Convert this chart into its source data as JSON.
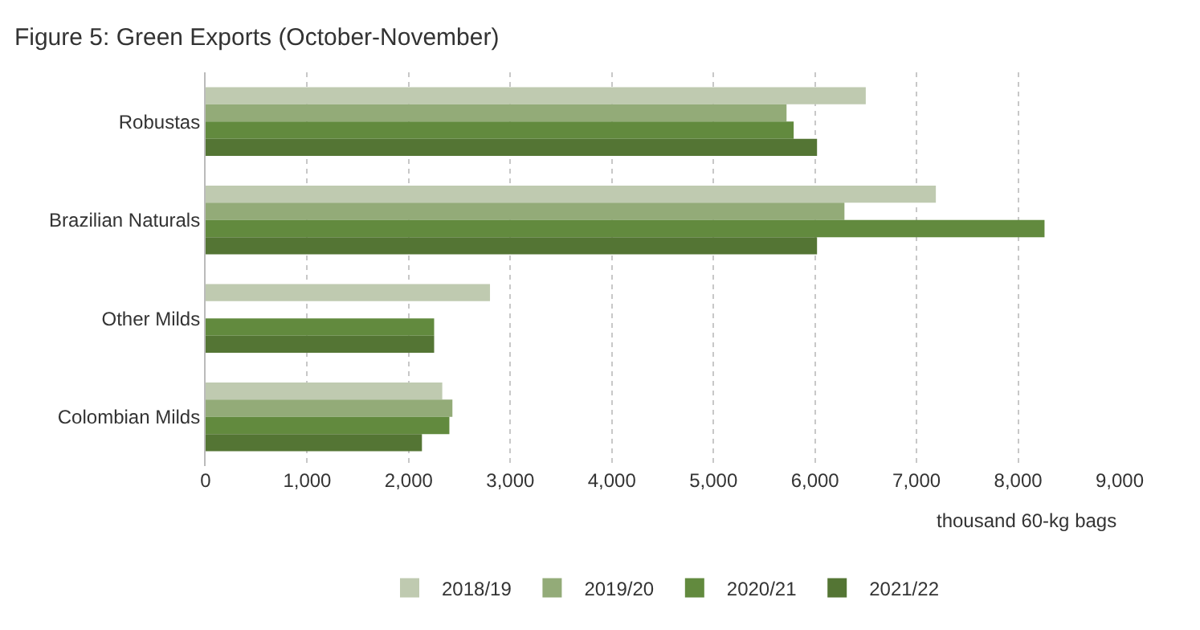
{
  "chart_data": {
    "type": "bar",
    "orientation": "horizontal",
    "title": "Figure 5: Green Exports (October-November)",
    "xlabel": "thousand 60-kg bags",
    "categories": [
      "Robustas",
      "Brazilian Naturals",
      "Other Milds",
      "Colombian Milds"
    ],
    "series": [
      {
        "name": "2018/19",
        "color": "#bfcab0",
        "values": [
          6500,
          7190,
          2800,
          2330
        ]
      },
      {
        "name": "2019/20",
        "color": "#93ab78",
        "values": [
          5720,
          6290,
          null,
          2430
        ]
      },
      {
        "name": "2020/21",
        "color": "#628a3e",
        "values": [
          5790,
          8260,
          2250,
          2400
        ]
      },
      {
        "name": "2021/22",
        "color": "#547534",
        "values": [
          6020,
          6020,
          2250,
          2130
        ]
      }
    ],
    "xlim": [
      0,
      9000
    ],
    "xticks": [
      {
        "value": 0,
        "label": "0"
      },
      {
        "value": 1000,
        "label": "1,000"
      },
      {
        "value": 2000,
        "label": "2,000"
      },
      {
        "value": 3000,
        "label": "3,000"
      },
      {
        "value": 4000,
        "label": "4,000"
      },
      {
        "value": 5000,
        "label": "5,000"
      },
      {
        "value": 6000,
        "label": "6,000"
      },
      {
        "value": 7000,
        "label": "7,000"
      },
      {
        "value": 8000,
        "label": "8,000"
      },
      {
        "value": 9000,
        "label": "9,000"
      }
    ],
    "grid": "x",
    "legend": "bottom"
  }
}
